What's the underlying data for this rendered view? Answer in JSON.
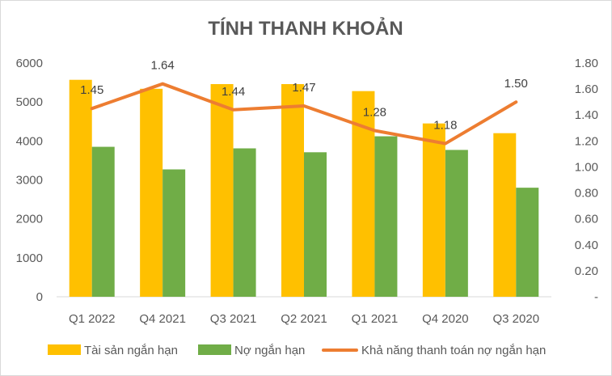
{
  "chart_data": {
    "type": "bar",
    "title": "TÍNH THANH KHOẢN",
    "categories": [
      "Q1 2022",
      "Q4 2021",
      "Q3 2021",
      "Q2 2021",
      "Q1 2021",
      "Q4 2020",
      "Q3 2020"
    ],
    "series": [
      {
        "name": "Tài sản ngắn hạn",
        "type": "bar",
        "axis": "left",
        "color": "#FFC000",
        "values": [
          5570,
          5340,
          5460,
          5460,
          5280,
          4450,
          4200
        ]
      },
      {
        "name": "Nợ ngắn hạn",
        "type": "bar",
        "axis": "left",
        "color": "#70AD47",
        "values": [
          3850,
          3270,
          3810,
          3710,
          4120,
          3770,
          2800
        ]
      },
      {
        "name": "Khả năng thanh toán nợ ngắn hạn",
        "type": "line",
        "axis": "right",
        "color": "#ED7D31",
        "values": [
          1.45,
          1.64,
          1.44,
          1.47,
          1.28,
          1.18,
          1.5
        ],
        "data_labels": [
          "1.45",
          "1.64",
          "1.44",
          "1.47",
          "1.28",
          "1.18",
          "1.50"
        ]
      }
    ],
    "y_left": {
      "ylim": [
        0,
        6000
      ],
      "ticks": [
        0,
        1000,
        2000,
        3000,
        4000,
        5000,
        6000
      ],
      "tick_labels": [
        "0",
        "1000",
        "2000",
        "3000",
        "4000",
        "5000",
        "6000"
      ]
    },
    "y_right": {
      "ylim": [
        0,
        1.8
      ],
      "ticks": [
        0,
        0.2,
        0.4,
        0.6,
        0.8,
        1.0,
        1.2,
        1.4,
        1.6,
        1.8
      ],
      "tick_labels": [
        "-",
        "0.20",
        "0.40",
        "0.60",
        "0.80",
        "1.00",
        "1.20",
        "1.40",
        "1.60",
        "1.80"
      ]
    },
    "grid": false,
    "legend_position": "bottom"
  }
}
